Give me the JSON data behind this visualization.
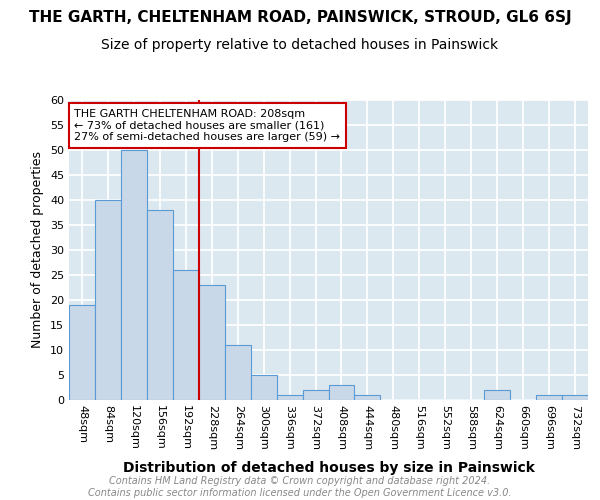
{
  "title": "THE GARTH, CHELTENHAM ROAD, PAINSWICK, STROUD, GL6 6SJ",
  "subtitle": "Size of property relative to detached houses in Painswick",
  "xlabel": "Distribution of detached houses by size in Painswick",
  "ylabel": "Number of detached properties",
  "bar_values": [
    19,
    40,
    50,
    38,
    26,
    23,
    11,
    5,
    1,
    2,
    3,
    1,
    0,
    0,
    0,
    0,
    2,
    0,
    1,
    1
  ],
  "bar_labels": [
    "48sqm",
    "84sqm",
    "120sqm",
    "156sqm",
    "192sqm",
    "228sqm",
    "264sqm",
    "300sqm",
    "336sqm",
    "372sqm",
    "408sqm",
    "444sqm",
    "480sqm",
    "516sqm",
    "552sqm",
    "588sqm",
    "624sqm",
    "660sqm",
    "696sqm",
    "732sqm"
  ],
  "bar_color": "#c8d8e8",
  "bar_edge_color": "#5b9bd5",
  "ylim": [
    0,
    60
  ],
  "yticks": [
    0,
    5,
    10,
    15,
    20,
    25,
    30,
    35,
    40,
    45,
    50,
    55,
    60
  ],
  "vline_x": 4.5,
  "vline_color": "#cc0000",
  "annotation_title": "THE GARTH CHELTENHAM ROAD: 208sqm",
  "annotation_line1": "← 73% of detached houses are smaller (161)",
  "annotation_line2": "27% of semi-detached houses are larger (59) →",
  "annotation_box_color": "#cc0000",
  "footer_line1": "Contains HM Land Registry data © Crown copyright and database right 2024.",
  "footer_line2": "Contains public sector information licensed under the Open Government Licence v3.0.",
  "background_color": "#dce8f0",
  "grid_color": "#ffffff",
  "title_fontsize": 11,
  "subtitle_fontsize": 10,
  "axis_label_fontsize": 9,
  "tick_fontsize": 8,
  "annotation_fontsize": 8,
  "footer_fontsize": 7
}
